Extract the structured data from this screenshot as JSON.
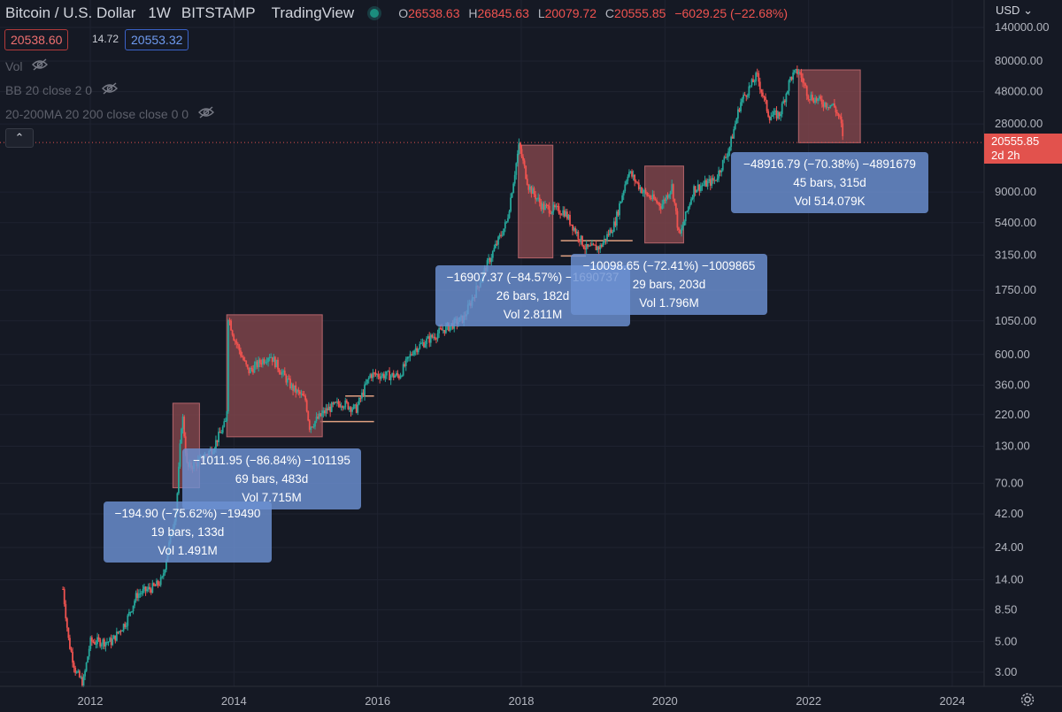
{
  "header": {
    "symbol": "Bitcoin / U.S. Dollar",
    "timeframe": "1W",
    "exchange": "BITSTAMP",
    "platform": "TradingView",
    "open_label": "O",
    "open": "26538.63",
    "high_label": "H",
    "high": "26845.63",
    "low_label": "L",
    "low": "20079.72",
    "close_label": "C",
    "close": "20555.85",
    "change": "−6029.25 (−22.68%)",
    "status_color": "#26a69a"
  },
  "prices": {
    "bid": "20538.60",
    "spread": "14.72",
    "ask": "20553.32"
  },
  "indicators": [
    {
      "label": "Vol"
    },
    {
      "label": "BB 20 close 2 0"
    },
    {
      "label": "20-200MA 20 200 close close 0 0"
    }
  ],
  "axis": {
    "currency": "USD",
    "currency_icon": "chevron-down-icon",
    "last_price": "20555.85",
    "countdown": "2d 2h"
  },
  "chart_data": {
    "type": "candlestick",
    "scale": "log",
    "ylim": [
      2.4,
      180000
    ],
    "xlim": [
      2011.3,
      2024.5
    ],
    "y_ticks": [
      "140000.00",
      "80000.00",
      "48000.00",
      "28000.00",
      "20555.85",
      "9000.00",
      "5400.00",
      "3150.00",
      "1750.00",
      "1050.00",
      "600.00",
      "360.00",
      "220.00",
      "130.00",
      "70.00",
      "42.00",
      "24.00",
      "14.00",
      "8.50",
      "5.00",
      "3.00"
    ],
    "x_ticks": [
      "2012",
      "2014",
      "2016",
      "2018",
      "2020",
      "2022",
      "2024"
    ],
    "price_path": [
      [
        2011.62,
        12
      ],
      [
        2011.7,
        5
      ],
      [
        2011.8,
        3
      ],
      [
        2011.9,
        2.5
      ],
      [
        2012.0,
        5
      ],
      [
        2012.3,
        5
      ],
      [
        2012.5,
        7
      ],
      [
        2012.65,
        11
      ],
      [
        2012.9,
        12.5
      ],
      [
        2013.0,
        14
      ],
      [
        2013.2,
        47
      ],
      [
        2013.28,
        230
      ],
      [
        2013.35,
        90
      ],
      [
        2013.5,
        100
      ],
      [
        2013.7,
        125
      ],
      [
        2013.9,
        200
      ],
      [
        2013.92,
        1150
      ],
      [
        2014.0,
        800
      ],
      [
        2014.2,
        450
      ],
      [
        2014.5,
        600
      ],
      [
        2014.8,
        350
      ],
      [
        2015.0,
        280
      ],
      [
        2015.05,
        180
      ],
      [
        2015.3,
        240
      ],
      [
        2015.5,
        270
      ],
      [
        2015.7,
        240
      ],
      [
        2015.9,
        430
      ],
      [
        2016.3,
        420
      ],
      [
        2016.5,
        650
      ],
      [
        2016.9,
        900
      ],
      [
        2017.2,
        1100
      ],
      [
        2017.5,
        2500
      ],
      [
        2017.8,
        5500
      ],
      [
        2017.97,
        19700
      ],
      [
        2018.1,
        10000
      ],
      [
        2018.3,
        7000
      ],
      [
        2018.6,
        6500
      ],
      [
        2018.9,
        3500
      ],
      [
        2019.1,
        3600
      ],
      [
        2019.3,
        5300
      ],
      [
        2019.49,
        12800
      ],
      [
        2019.7,
        9000
      ],
      [
        2019.95,
        7200
      ],
      [
        2020.1,
        10000
      ],
      [
        2020.2,
        4200
      ],
      [
        2020.4,
        9500
      ],
      [
        2020.7,
        11000
      ],
      [
        2020.9,
        19000
      ],
      [
        2021.05,
        40000
      ],
      [
        2021.28,
        63000
      ],
      [
        2021.45,
        32000
      ],
      [
        2021.6,
        33000
      ],
      [
        2021.75,
        61000
      ],
      [
        2021.86,
        68000
      ],
      [
        2022.0,
        45000
      ],
      [
        2022.2,
        40000
      ],
      [
        2022.35,
        38000
      ],
      [
        2022.45,
        29000
      ],
      [
        2022.48,
        20555
      ]
    ],
    "measurements": [
      {
        "value": "−194.90 (−75.62%) −19490",
        "bars": "19 bars, 133d",
        "volume": "Vol 1.491M",
        "from": [
          2013.15,
          266
        ],
        "to": [
          2013.52,
          65
        ],
        "direction": "down"
      },
      {
        "value": "−1011.95 (−86.84%) −101195",
        "bars": "69 bars, 483d",
        "volume": "Vol 7.715M",
        "from": [
          2013.9,
          1163
        ],
        "to": [
          2015.23,
          152
        ],
        "direction": "down"
      },
      {
        "value": "−16907.37 (−84.57%) −1690737",
        "bars": "26 bars, 182d",
        "volume": "Vol 2.811M",
        "from": [
          2017.96,
          19666
        ],
        "to": [
          2018.44,
          3000
        ],
        "direction": "down"
      },
      {
        "value": "−10098.65 (−72.41%) −1009865",
        "bars": "29 bars, 203d",
        "volume": "Vol 1.796M",
        "from": [
          2019.72,
          13880
        ],
        "to": [
          2020.26,
          3850
        ],
        "direction": "down"
      },
      {
        "value": "−48916.79 (−70.38%) −4891679",
        "bars": "45 bars, 315d",
        "volume": "Vol 514.079K",
        "from": [
          2021.86,
          69000
        ],
        "to": [
          2022.72,
          20500
        ],
        "direction": "down"
      }
    ],
    "horizontal_lines": [
      {
        "from": [
          2015.2,
          196
        ],
        "to": [
          2015.95,
          196
        ],
        "color": "#e0a080"
      },
      {
        "from": [
          2015.55,
          300
        ],
        "to": [
          2015.95,
          300
        ],
        "color": "#e0a080"
      },
      {
        "from": [
          2018.55,
          4000
        ],
        "to": [
          2019.55,
          4000
        ],
        "color": "#e0a080"
      },
      {
        "from": [
          2018.55,
          3100
        ],
        "to": [
          2018.9,
          3100
        ],
        "color": "#e0a080"
      }
    ],
    "colors": {
      "up": "#26a69a",
      "down": "#ef5350",
      "measure_fill": "#8b4a4f",
      "label_bg": "#6b8fd1"
    },
    "grid": true
  }
}
